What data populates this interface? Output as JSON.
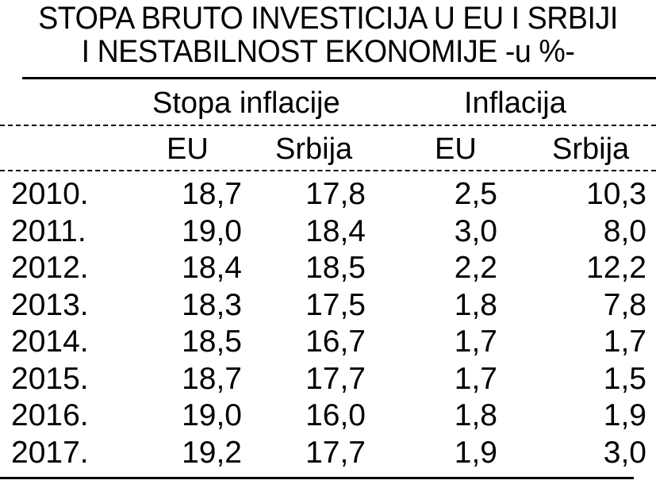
{
  "title": {
    "line1": "STOPA BRUTO INVESTICIJA U EU I SRBIJI",
    "line2": "I NESTABILNOST EKONOMIJE -u %-"
  },
  "headers": {
    "group1": "Stopa inflacije",
    "group2": "Inflacija",
    "sub": [
      "EU",
      "Srbija",
      "EU",
      "Srbija"
    ]
  },
  "rows": [
    {
      "year": "2010.",
      "values": [
        "18,7",
        "17,8",
        "2,5",
        "10,3"
      ]
    },
    {
      "year": "2011.",
      "values": [
        "19,0",
        "18,4",
        "3,0",
        "8,0"
      ]
    },
    {
      "year": "2012.",
      "values": [
        "18,4",
        "18,5",
        "2,2",
        "12,2"
      ]
    },
    {
      "year": "2013.",
      "values": [
        "18,3",
        "17,5",
        "1,8",
        "7,8"
      ]
    },
    {
      "year": "2014.",
      "values": [
        "18,5",
        "16,7",
        "1,7",
        "1,7"
      ]
    },
    {
      "year": "2015.",
      "values": [
        "18,7",
        "17,7",
        "1,7",
        "1,5"
      ]
    },
    {
      "year": "2016.",
      "values": [
        "19,0",
        "16,0",
        "1,8",
        "1,9"
      ]
    },
    {
      "year": "2017.",
      "values": [
        "19,2",
        "17,7",
        "1,9",
        "3,0"
      ]
    }
  ]
}
